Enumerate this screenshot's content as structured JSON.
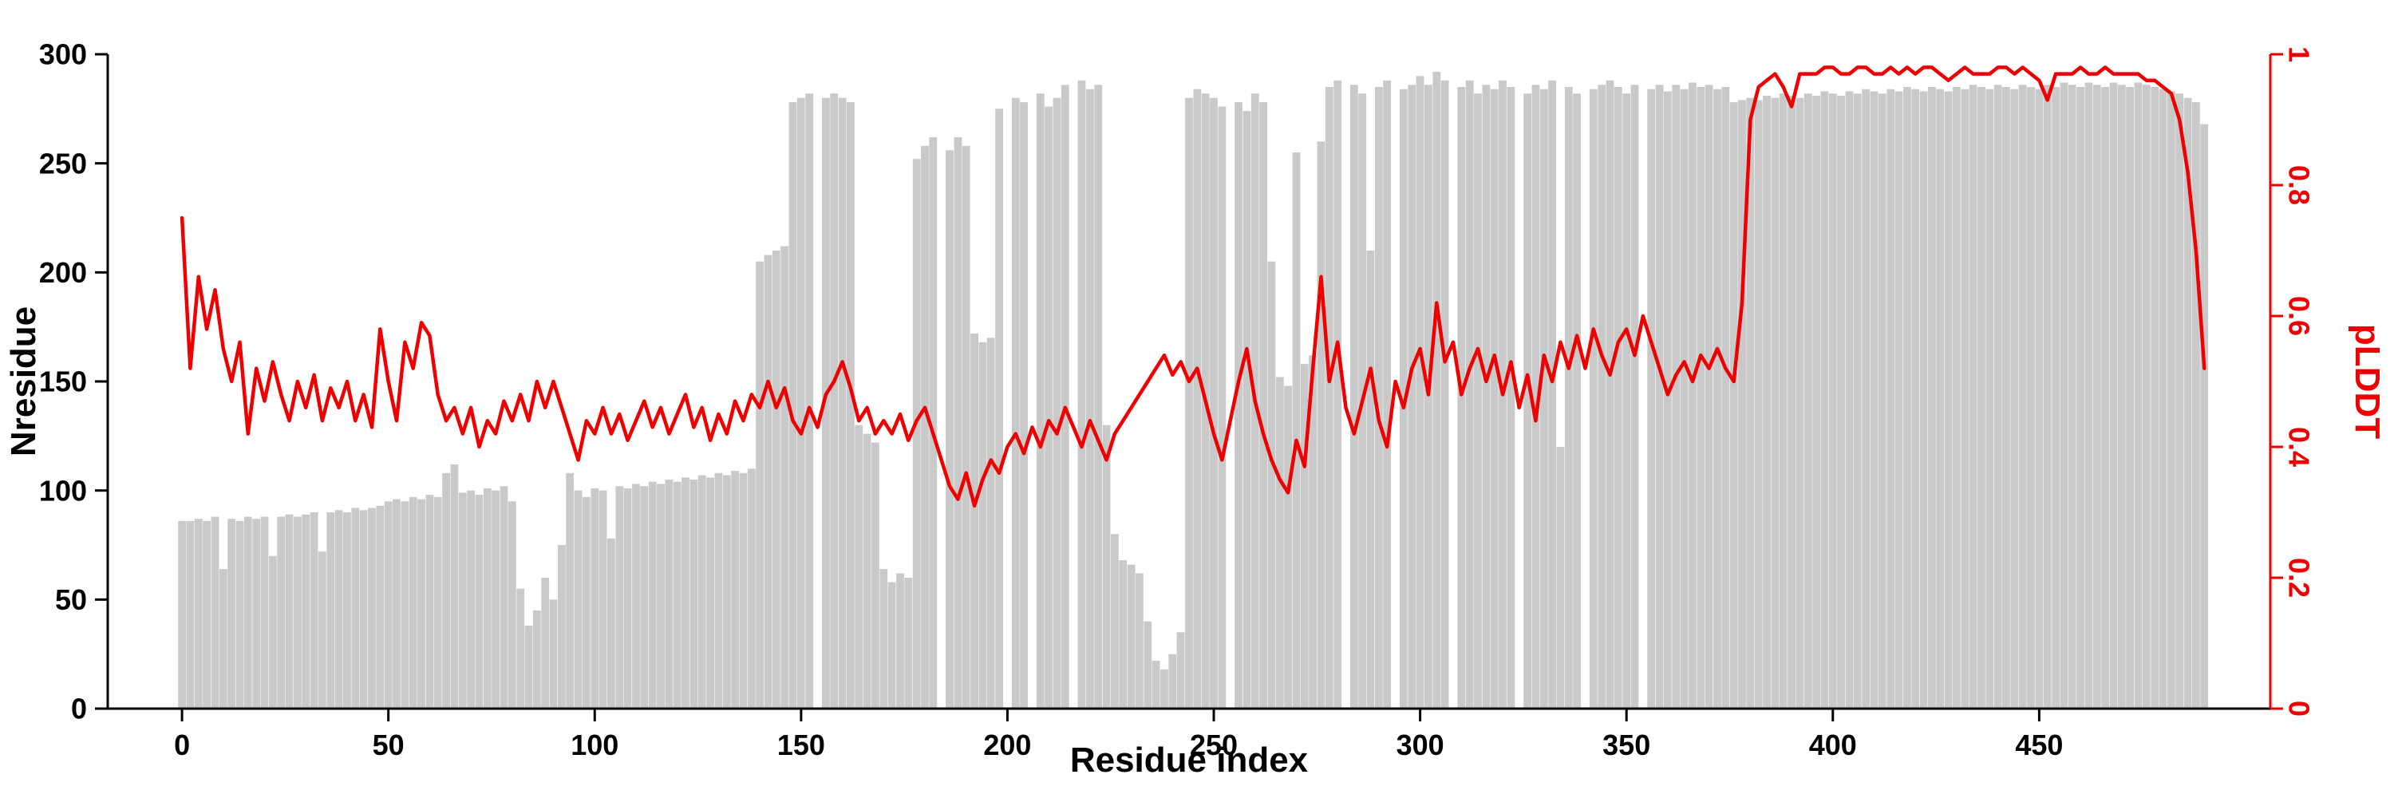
{
  "chart": {
    "xlabel": "Residue index",
    "ylabel_left": "Nresidue",
    "ylabel_right": "pLDDT",
    "colors": {
      "bars": "#c9c9c9",
      "line": "#ee0000",
      "axis": "#000000"
    }
  },
  "chart_data": {
    "type": "bar+line",
    "title": "",
    "x_step": 2,
    "xlim": [
      -18,
      506
    ],
    "ylim_left": [
      0,
      300
    ],
    "ylim_right": [
      0,
      1
    ],
    "xticks": [
      0,
      50,
      100,
      150,
      200,
      250,
      300,
      350,
      400,
      450
    ],
    "yticks_left": [
      0,
      50,
      100,
      150,
      200,
      250,
      300
    ],
    "yticks_right": [
      0,
      0.2,
      0.4,
      0.6,
      0.8,
      1
    ],
    "series_names": [
      "Nresidue (gray bars, left axis)",
      "pLDDT (red line, right axis)"
    ],
    "points": [
      [
        0,
        86,
        0.75
      ],
      [
        2,
        86,
        0.52
      ],
      [
        4,
        87,
        0.66
      ],
      [
        6,
        86,
        0.58
      ],
      [
        8,
        88,
        0.64
      ],
      [
        10,
        64,
        0.55
      ],
      [
        12,
        87,
        0.5
      ],
      [
        14,
        86,
        0.56
      ],
      [
        16,
        88,
        0.42
      ],
      [
        18,
        87,
        0.52
      ],
      [
        20,
        88,
        0.47
      ],
      [
        22,
        70,
        0.53
      ],
      [
        24,
        88,
        0.48
      ],
      [
        26,
        89,
        0.44
      ],
      [
        28,
        88,
        0.5
      ],
      [
        30,
        89,
        0.46
      ],
      [
        32,
        90,
        0.51
      ],
      [
        34,
        72,
        0.44
      ],
      [
        36,
        90,
        0.49
      ],
      [
        38,
        91,
        0.46
      ],
      [
        40,
        90,
        0.5
      ],
      [
        42,
        92,
        0.44
      ],
      [
        44,
        91,
        0.48
      ],
      [
        46,
        92,
        0.43
      ],
      [
        48,
        93,
        0.58
      ],
      [
        50,
        95,
        0.5
      ],
      [
        52,
        96,
        0.44
      ],
      [
        54,
        95,
        0.56
      ],
      [
        56,
        97,
        0.52
      ],
      [
        58,
        96,
        0.59
      ],
      [
        60,
        98,
        0.57
      ],
      [
        62,
        97,
        0.48
      ],
      [
        64,
        108,
        0.44
      ],
      [
        66,
        112,
        0.46
      ],
      [
        68,
        99,
        0.42
      ],
      [
        70,
        100,
        0.46
      ],
      [
        72,
        98,
        0.4
      ],
      [
        74,
        101,
        0.44
      ],
      [
        76,
        100,
        0.42
      ],
      [
        78,
        102,
        0.47
      ],
      [
        80,
        95,
        0.44
      ],
      [
        82,
        55,
        0.48
      ],
      [
        84,
        38,
        0.44
      ],
      [
        86,
        45,
        0.5
      ],
      [
        88,
        60,
        0.46
      ],
      [
        90,
        50,
        0.5
      ],
      [
        92,
        75,
        0.46
      ],
      [
        94,
        108,
        0.42
      ],
      [
        96,
        100,
        0.38
      ],
      [
        98,
        97,
        0.44
      ],
      [
        100,
        101,
        0.42
      ],
      [
        102,
        100,
        0.46
      ],
      [
        104,
        78,
        0.42
      ],
      [
        106,
        102,
        0.45
      ],
      [
        108,
        101,
        0.41
      ],
      [
        110,
        103,
        0.44
      ],
      [
        112,
        102,
        0.47
      ],
      [
        114,
        104,
        0.43
      ],
      [
        116,
        103,
        0.46
      ],
      [
        118,
        105,
        0.42
      ],
      [
        120,
        104,
        0.45
      ],
      [
        122,
        106,
        0.48
      ],
      [
        124,
        105,
        0.43
      ],
      [
        126,
        107,
        0.46
      ],
      [
        128,
        106,
        0.41
      ],
      [
        130,
        108,
        0.45
      ],
      [
        132,
        107,
        0.42
      ],
      [
        134,
        109,
        0.47
      ],
      [
        136,
        108,
        0.44
      ],
      [
        138,
        110,
        0.48
      ],
      [
        140,
        205,
        0.46
      ],
      [
        142,
        208,
        0.5
      ],
      [
        144,
        210,
        0.46
      ],
      [
        146,
        212,
        0.49
      ],
      [
        148,
        278,
        0.44
      ],
      [
        150,
        280,
        0.42
      ],
      [
        152,
        282,
        0.46
      ],
      [
        154,
        0,
        0.43
      ],
      [
        156,
        280,
        0.48
      ],
      [
        158,
        282,
        0.5
      ],
      [
        160,
        280,
        0.53
      ],
      [
        162,
        278,
        0.49
      ],
      [
        164,
        130,
        0.44
      ],
      [
        166,
        126,
        0.46
      ],
      [
        168,
        122,
        0.42
      ],
      [
        170,
        64,
        0.44
      ],
      [
        172,
        58,
        0.42
      ],
      [
        174,
        62,
        0.45
      ],
      [
        176,
        60,
        0.41
      ],
      [
        178,
        252,
        0.44
      ],
      [
        180,
        258,
        0.46
      ],
      [
        182,
        262,
        0.42
      ],
      [
        184,
        0,
        0.38
      ],
      [
        186,
        256,
        0.34
      ],
      [
        188,
        262,
        0.32
      ],
      [
        190,
        258,
        0.36
      ],
      [
        192,
        172,
        0.31
      ],
      [
        194,
        168,
        0.35
      ],
      [
        196,
        170,
        0.38
      ],
      [
        198,
        275,
        0.36
      ],
      [
        200,
        0,
        0.4
      ],
      [
        202,
        280,
        0.42
      ],
      [
        204,
        278,
        0.39
      ],
      [
        206,
        0,
        0.43
      ],
      [
        208,
        282,
        0.4
      ],
      [
        210,
        276,
        0.44
      ],
      [
        212,
        280,
        0.42
      ],
      [
        214,
        286,
        0.46
      ],
      [
        216,
        0,
        0.43
      ],
      [
        218,
        288,
        0.4
      ],
      [
        220,
        284,
        0.44
      ],
      [
        222,
        286,
        0.41
      ],
      [
        224,
        130,
        0.38
      ],
      [
        226,
        80,
        0.42
      ],
      [
        228,
        68,
        0.44
      ],
      [
        230,
        66,
        0.46
      ],
      [
        232,
        62,
        0.48
      ],
      [
        234,
        40,
        0.5
      ],
      [
        236,
        22,
        0.52
      ],
      [
        238,
        18,
        0.54
      ],
      [
        240,
        25,
        0.51
      ],
      [
        242,
        35,
        0.53
      ],
      [
        244,
        280,
        0.5
      ],
      [
        246,
        284,
        0.52
      ],
      [
        248,
        282,
        0.47
      ],
      [
        250,
        280,
        0.42
      ],
      [
        252,
        276,
        0.38
      ],
      [
        254,
        0,
        0.44
      ],
      [
        256,
        278,
        0.5
      ],
      [
        258,
        274,
        0.55
      ],
      [
        260,
        282,
        0.47
      ],
      [
        262,
        278,
        0.42
      ],
      [
        264,
        205,
        0.38
      ],
      [
        266,
        152,
        0.35
      ],
      [
        268,
        148,
        0.33
      ],
      [
        270,
        255,
        0.41
      ],
      [
        272,
        158,
        0.37
      ],
      [
        274,
        162,
        0.52
      ],
      [
        276,
        260,
        0.66
      ],
      [
        278,
        285,
        0.5
      ],
      [
        280,
        288,
        0.56
      ],
      [
        282,
        0,
        0.46
      ],
      [
        284,
        286,
        0.42
      ],
      [
        286,
        282,
        0.47
      ],
      [
        288,
        210,
        0.52
      ],
      [
        290,
        285,
        0.44
      ],
      [
        292,
        288,
        0.4
      ],
      [
        294,
        0,
        0.5
      ],
      [
        296,
        284,
        0.46
      ],
      [
        298,
        286,
        0.52
      ],
      [
        300,
        290,
        0.55
      ],
      [
        302,
        286,
        0.48
      ],
      [
        304,
        292,
        0.62
      ],
      [
        306,
        288,
        0.53
      ],
      [
        308,
        0,
        0.56
      ],
      [
        310,
        285,
        0.48
      ],
      [
        312,
        288,
        0.52
      ],
      [
        314,
        282,
        0.55
      ],
      [
        316,
        286,
        0.5
      ],
      [
        318,
        284,
        0.54
      ],
      [
        320,
        288,
        0.48
      ],
      [
        322,
        285,
        0.53
      ],
      [
        324,
        0,
        0.46
      ],
      [
        326,
        282,
        0.51
      ],
      [
        328,
        286,
        0.44
      ],
      [
        330,
        284,
        0.54
      ],
      [
        332,
        288,
        0.5
      ],
      [
        334,
        120,
        0.56
      ],
      [
        336,
        285,
        0.52
      ],
      [
        338,
        282,
        0.57
      ],
      [
        340,
        0,
        0.52
      ],
      [
        342,
        284,
        0.58
      ],
      [
        344,
        286,
        0.54
      ],
      [
        346,
        288,
        0.51
      ],
      [
        348,
        285,
        0.56
      ],
      [
        350,
        282,
        0.58
      ],
      [
        352,
        286,
        0.54
      ],
      [
        354,
        0,
        0.6
      ],
      [
        356,
        284,
        0.56
      ],
      [
        358,
        286,
        0.52
      ],
      [
        360,
        283,
        0.48
      ],
      [
        362,
        286,
        0.51
      ],
      [
        364,
        284,
        0.53
      ],
      [
        366,
        287,
        0.5
      ],
      [
        368,
        285,
        0.54
      ],
      [
        370,
        286,
        0.52
      ],
      [
        372,
        284,
        0.55
      ],
      [
        374,
        285,
        0.52
      ],
      [
        376,
        278,
        0.5
      ],
      [
        378,
        279,
        0.62
      ],
      [
        380,
        280,
        0.9
      ],
      [
        382,
        279,
        0.95
      ],
      [
        384,
        281,
        0.96
      ],
      [
        386,
        280,
        0.97
      ],
      [
        388,
        282,
        0.95
      ],
      [
        390,
        281,
        0.92
      ],
      [
        392,
        280,
        0.97
      ],
      [
        394,
        282,
        0.97
      ],
      [
        396,
        281,
        0.97
      ],
      [
        398,
        283,
        0.98
      ],
      [
        400,
        282,
        0.98
      ],
      [
        402,
        281,
        0.97
      ],
      [
        404,
        283,
        0.97
      ],
      [
        406,
        282,
        0.98
      ],
      [
        408,
        284,
        0.98
      ],
      [
        410,
        283,
        0.97
      ],
      [
        412,
        282,
        0.97
      ],
      [
        414,
        284,
        0.98
      ],
      [
        416,
        283,
        0.97
      ],
      [
        418,
        285,
        0.98
      ],
      [
        420,
        284,
        0.97
      ],
      [
        422,
        283,
        0.98
      ],
      [
        424,
        285,
        0.98
      ],
      [
        426,
        284,
        0.97
      ],
      [
        428,
        283,
        0.96
      ],
      [
        430,
        285,
        0.97
      ],
      [
        432,
        284,
        0.98
      ],
      [
        434,
        286,
        0.97
      ],
      [
        436,
        285,
        0.97
      ],
      [
        438,
        284,
        0.97
      ],
      [
        440,
        286,
        0.98
      ],
      [
        442,
        285,
        0.98
      ],
      [
        444,
        284,
        0.97
      ],
      [
        446,
        286,
        0.98
      ],
      [
        448,
        285,
        0.97
      ],
      [
        450,
        284,
        0.96
      ],
      [
        452,
        286,
        0.93
      ],
      [
        454,
        285,
        0.97
      ],
      [
        456,
        287,
        0.97
      ],
      [
        458,
        286,
        0.97
      ],
      [
        460,
        285,
        0.98
      ],
      [
        462,
        287,
        0.97
      ],
      [
        464,
        286,
        0.97
      ],
      [
        466,
        285,
        0.98
      ],
      [
        468,
        287,
        0.97
      ],
      [
        470,
        286,
        0.97
      ],
      [
        472,
        285,
        0.97
      ],
      [
        474,
        287,
        0.97
      ],
      [
        476,
        286,
        0.96
      ],
      [
        478,
        285,
        0.96
      ],
      [
        480,
        284,
        0.95
      ],
      [
        482,
        283,
        0.94
      ],
      [
        484,
        282,
        0.9
      ],
      [
        486,
        280,
        0.82
      ],
      [
        488,
        278,
        0.7
      ],
      [
        490,
        268,
        0.52
      ]
    ]
  }
}
